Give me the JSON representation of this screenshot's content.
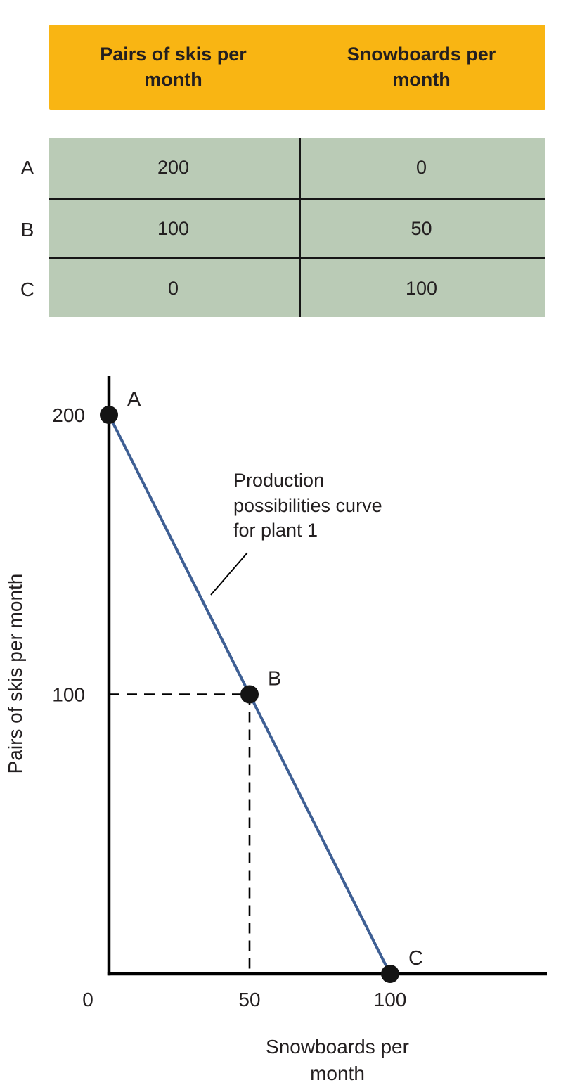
{
  "colors": {
    "header_bg": "#F9B513",
    "table_bg": "#BACBB6",
    "line": "#3E5F94",
    "point": "#141414",
    "text": "#231F20",
    "axis": "#000000"
  },
  "table": {
    "headers": [
      "Pairs of skis per month",
      "Snowboards per month"
    ],
    "rows": [
      {
        "label": "A",
        "skis": "200",
        "snowboards": "0"
      },
      {
        "label": "B",
        "skis": "100",
        "snowboards": "50"
      },
      {
        "label": "C",
        "skis": "0",
        "snowboards": "100"
      }
    ]
  },
  "chart_data": {
    "type": "line",
    "title": "",
    "xlabel": "Snowboards per month",
    "ylabel": "Pairs of skis per month",
    "xlim": [
      0,
      155
    ],
    "ylim": [
      0,
      214
    ],
    "x_ticks": [
      0,
      50,
      100
    ],
    "y_ticks": [
      100,
      200
    ],
    "series": [
      {
        "name": "Production possibilities curve for plant 1",
        "x": [
          0,
          50,
          100
        ],
        "y": [
          200,
          100,
          0
        ]
      }
    ],
    "points": [
      {
        "label": "A",
        "x": 0,
        "y": 200
      },
      {
        "label": "B",
        "x": 50,
        "y": 100
      },
      {
        "label": "C",
        "x": 100,
        "y": 0
      }
    ],
    "dashed_guides": {
      "x": 50,
      "y": 100
    },
    "annotation": "Production possibilities curve for plant 1",
    "grid": false,
    "legend": "none"
  }
}
